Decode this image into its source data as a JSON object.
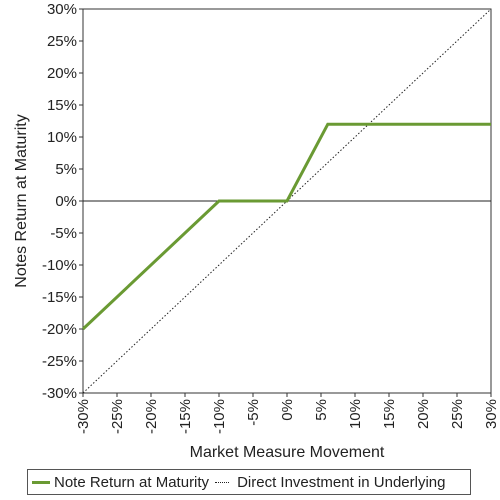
{
  "chart_data": {
    "type": "line",
    "title": "",
    "xlabel": "Market Measure Movement",
    "ylabel": "Notes Return at Maturity",
    "xlim": [
      -30,
      30
    ],
    "ylim": [
      -30,
      30
    ],
    "x_ticks": [
      "-30%",
      "-25%",
      "-20%",
      "-15%",
      "-10%",
      "-5%",
      "0%",
      "5%",
      "10%",
      "15%",
      "20%",
      "25%",
      "30%"
    ],
    "y_ticks": [
      "30%",
      "25%",
      "20%",
      "15%",
      "10%",
      "5%",
      "0%",
      "-5%",
      "-10%",
      "-15%",
      "-20%",
      "-25%",
      "-30%"
    ],
    "grid": false,
    "legend_position": "bottom",
    "series": [
      {
        "name": "Note Return at Maturity",
        "style": "solid",
        "color": "#6a9a33",
        "x": [
          -30,
          -10,
          0,
          6,
          30
        ],
        "y": [
          -20,
          0,
          0,
          12,
          12
        ]
      },
      {
        "name": "Direct Investment in Underlying",
        "style": "dotted",
        "color": "#222222",
        "x": [
          -30,
          30
        ],
        "y": [
          -30,
          30
        ]
      }
    ]
  }
}
